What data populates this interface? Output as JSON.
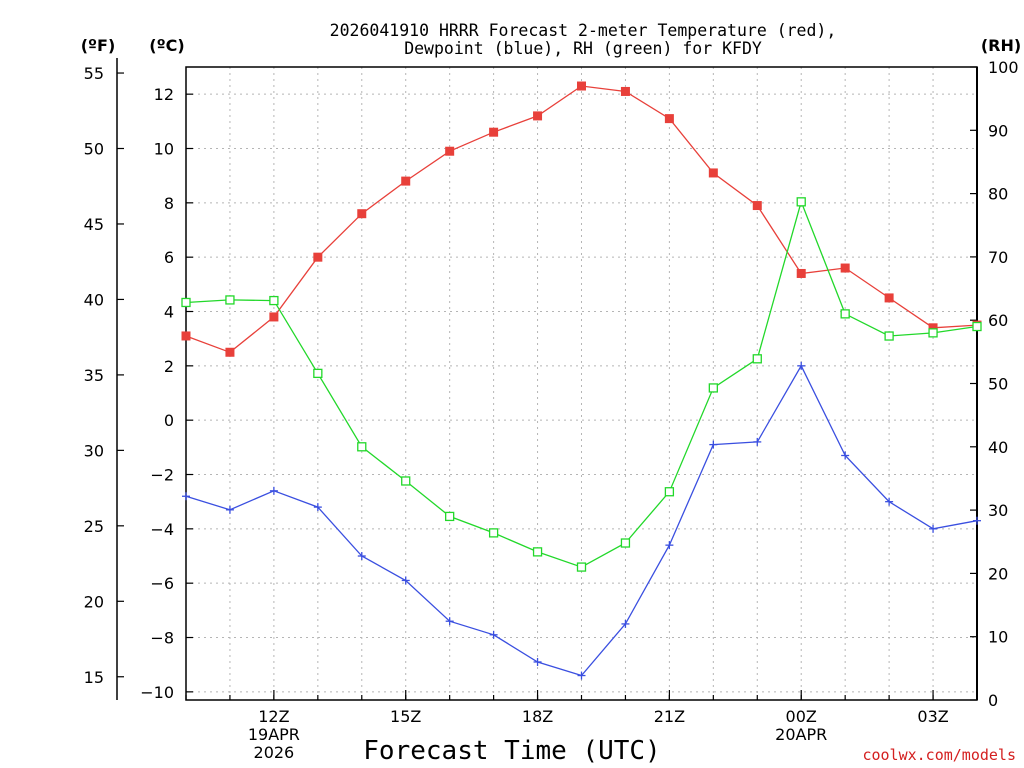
{
  "chart_data": {
    "type": "line",
    "title_lines": [
      "2026041910 HRRR Forecast 2-meter Temperature (red),",
      "Dewpoint (blue), RH (green) for KFDY"
    ],
    "xlabel": "Forecast Time (UTC)",
    "credit": "coolwx.com/models",
    "units": {
      "fahrenheit": "(ºF)",
      "celsius": "(ºC)",
      "rh": "(RH)"
    },
    "x_hours": [
      10,
      11,
      12,
      13,
      14,
      15,
      16,
      17,
      18,
      19,
      20,
      21,
      22,
      23,
      24,
      25,
      26,
      27,
      28
    ],
    "xlim": [
      10,
      28
    ],
    "x_ticks": [
      {
        "hour": 12,
        "lines": [
          "12Z",
          "19APR",
          "2026"
        ]
      },
      {
        "hour": 15,
        "lines": [
          "15Z"
        ]
      },
      {
        "hour": 18,
        "lines": [
          "18Z"
        ]
      },
      {
        "hour": 21,
        "lines": [
          "21Z"
        ]
      },
      {
        "hour": 24,
        "lines": [
          "00Z",
          "20APR"
        ]
      },
      {
        "hour": 27,
        "lines": [
          "03Z"
        ]
      }
    ],
    "celsius_axis": {
      "ylim": [
        -10.3,
        13.0
      ],
      "ticks": [
        12,
        10,
        8,
        6,
        4,
        2,
        0,
        -2,
        -4,
        -6,
        -8,
        -10
      ],
      "tick_labels": [
        "12",
        "10",
        "8",
        "6",
        "4",
        "2",
        "0",
        "−2",
        "−4",
        "−6",
        "−8",
        "−10"
      ]
    },
    "fahrenheit_axis": {
      "ticks": [
        55,
        50,
        45,
        40,
        35,
        30,
        25,
        20,
        15
      ],
      "tick_labels": [
        "55",
        "50",
        "45",
        "40",
        "35",
        "30",
        "25",
        "20",
        "15"
      ]
    },
    "rh_axis": {
      "ylim": [
        0,
        100
      ],
      "ticks": [
        100,
        90,
        80,
        70,
        60,
        50,
        40,
        30,
        20,
        10,
        0
      ],
      "tick_labels": [
        "100",
        "90",
        "80",
        "70",
        "60",
        "50",
        "40",
        "30",
        "20",
        "10",
        "0"
      ]
    },
    "series": [
      {
        "name": "2-meter Temperature",
        "axis": "celsius",
        "color": "#e8403a",
        "marker": "filled-square",
        "values": [
          3.1,
          2.5,
          3.8,
          6.0,
          7.6,
          8.8,
          9.9,
          10.6,
          11.2,
          12.3,
          12.1,
          11.1,
          9.1,
          7.9,
          5.4,
          5.6,
          4.5,
          3.4,
          3.5
        ]
      },
      {
        "name": "Dewpoint",
        "axis": "celsius",
        "color": "#3a4fe0",
        "marker": "plus",
        "values": [
          -2.8,
          -3.3,
          -2.6,
          -3.2,
          -5.0,
          -5.9,
          -7.4,
          -7.9,
          -8.9,
          -9.4,
          -7.5,
          -4.6,
          -0.9,
          -0.8,
          2.0,
          -1.3,
          -3.0,
          -4.0,
          -3.7
        ]
      },
      {
        "name": "RH",
        "axis": "rh",
        "color": "#22d82a",
        "marker": "open-square",
        "values": [
          62.8,
          63.2,
          63.1,
          51.6,
          40.0,
          34.6,
          29.0,
          26.4,
          23.4,
          21.0,
          24.8,
          32.9,
          49.3,
          53.9,
          78.7,
          61.0,
          57.5,
          58.0,
          59.0
        ]
      }
    ]
  }
}
